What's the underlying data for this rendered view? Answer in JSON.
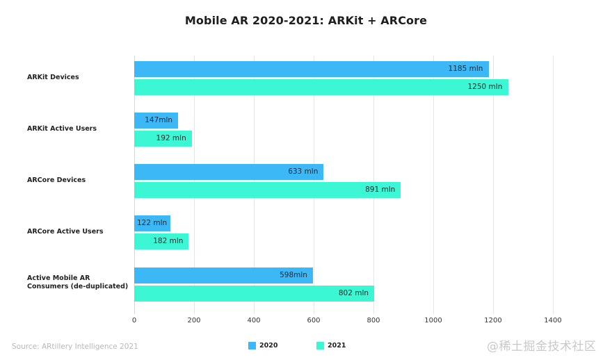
{
  "chart_data": {
    "type": "bar",
    "orientation": "horizontal",
    "title": "Mobile AR 2020-2021: ARKit + ARCore",
    "categories": [
      "ARKit Devices",
      "ARKit Active Users",
      "ARCore Devices",
      "ARCore Active Users",
      "Active Mobile AR Consumers (de-duplicated)"
    ],
    "category_lines": [
      [
        "ARKit Devices"
      ],
      [
        "ARKit Active Users"
      ],
      [
        "ARCore Devices"
      ],
      [
        "ARCore Active Users"
      ],
      [
        "Active Mobile AR",
        "Consumers (de-duplicated)"
      ]
    ],
    "series": [
      {
        "name": "2020",
        "color": "#3db8f7",
        "values": [
          1185,
          147,
          633,
          122,
          598
        ],
        "labels": [
          "1185 mln",
          "147mln",
          "633 mln",
          "122 mln",
          "598mln"
        ]
      },
      {
        "name": "2021",
        "color": "#3cf7d3",
        "values": [
          1250,
          192,
          891,
          182,
          802
        ],
        "labels": [
          "1250 mln",
          "192 mln",
          "891 mln",
          "182 mln",
          "802 mln"
        ]
      }
    ],
    "xlabel": "",
    "ylabel": "",
    "xlim": [
      0,
      1400
    ],
    "xticks": [
      "0",
      "200",
      "400",
      "600",
      "800",
      "1000",
      "1200",
      "1400"
    ],
    "grid": true,
    "legend_position": "bottom"
  },
  "footer": {
    "source": "Source: ARtillery Intelligence 2021",
    "watermark": "@稀土掘金技术社区"
  }
}
